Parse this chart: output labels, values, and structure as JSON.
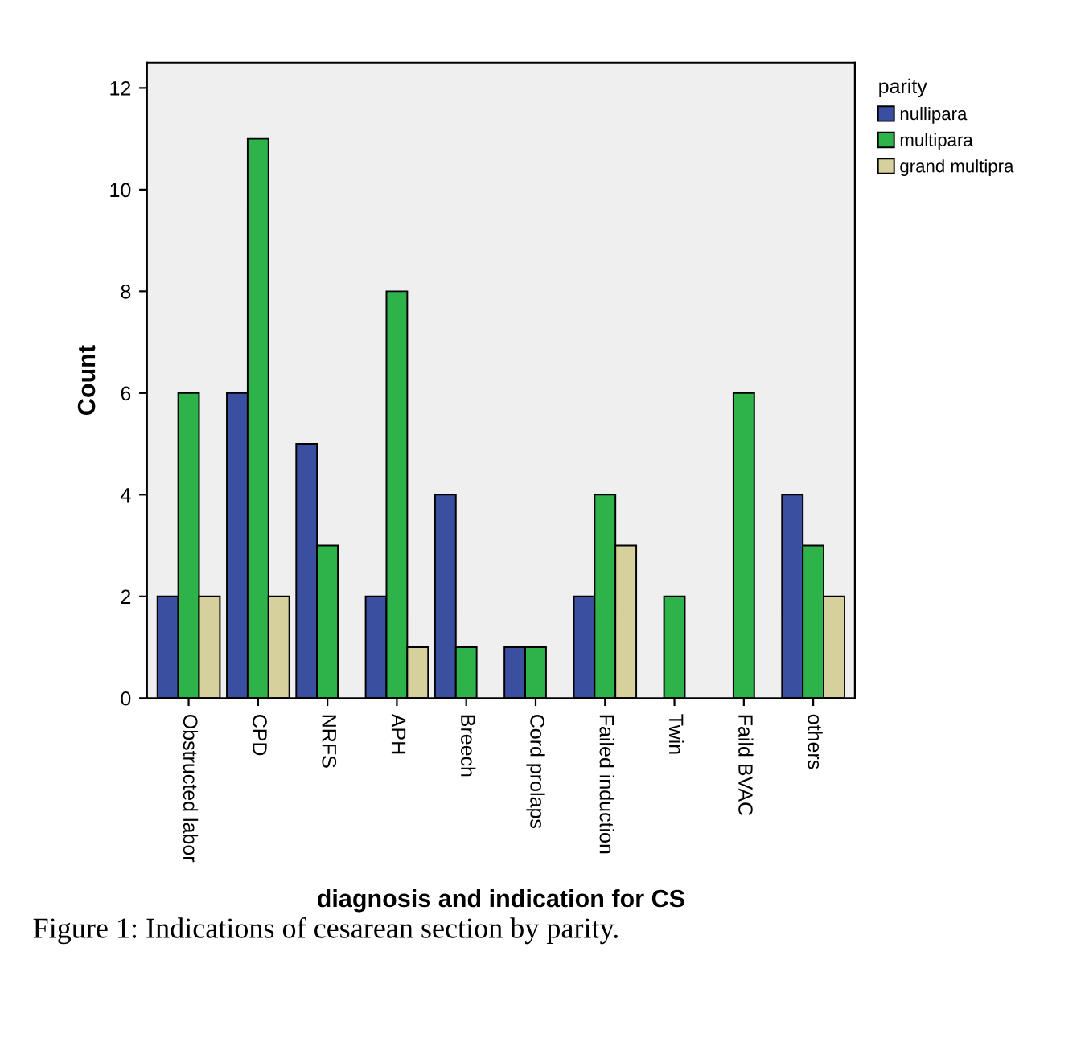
{
  "chart_data": {
    "type": "bar",
    "xlabel": "diagnosis and indication for CS",
    "ylabel": "Count",
    "legend_title": "parity",
    "categories": [
      "Obstructed labor",
      "CPD",
      "NRFS",
      "APH",
      "Breech",
      "Cord prolaps",
      "Failed induction",
      "Twin",
      "Faild BVAC",
      "others"
    ],
    "series": [
      {
        "name": "nullipara",
        "color": "#3b4fa0",
        "values": [
          2,
          6,
          5,
          2,
          4,
          1,
          2,
          0,
          0,
          4
        ]
      },
      {
        "name": "multipara",
        "color": "#2db34a",
        "values": [
          6,
          11,
          3,
          8,
          1,
          1,
          4,
          2,
          6,
          3
        ]
      },
      {
        "name": "grand multipra",
        "color": "#d6d19c",
        "values": [
          2,
          2,
          0,
          1,
          0,
          0,
          3,
          0,
          0,
          2
        ]
      }
    ],
    "ylim": [
      0,
      12.5
    ],
    "yticks": [
      0,
      2,
      4,
      6,
      8,
      10,
      12
    ],
    "grid": false,
    "legend": "top right",
    "annotations": [
      "Figure 1: Indications of cesarean section by parity."
    ]
  }
}
